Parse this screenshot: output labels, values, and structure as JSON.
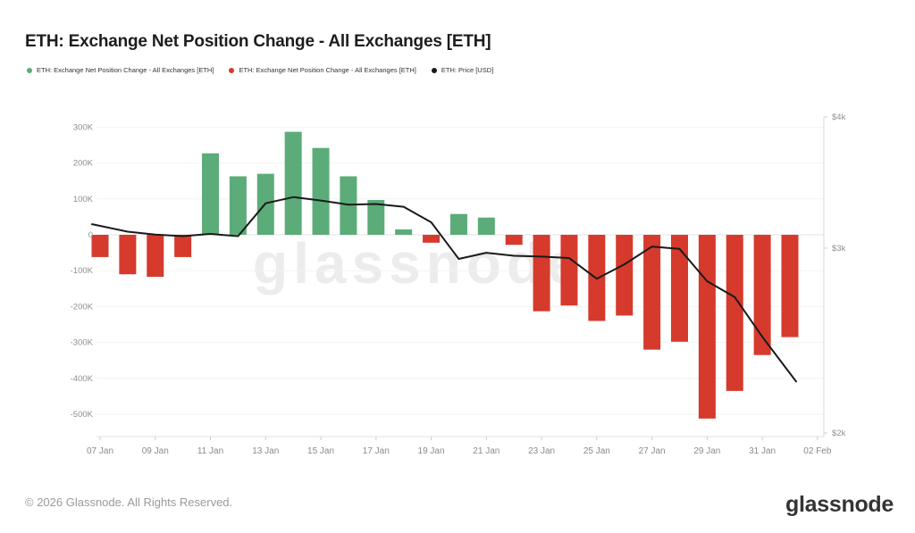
{
  "title": "ETH: Exchange Net Position Change - All Exchanges [ETH]",
  "legend": [
    {
      "label": "ETH: Exchange Net Position Change - All Exchanges [ETH]",
      "color": "#5bac78"
    },
    {
      "label": "ETH: Exchange Net Position Change - All Exchanges [ETH]",
      "color": "#d53a2c"
    },
    {
      "label": "ETH: Price [USD]",
      "color": "#1a1a1a"
    }
  ],
  "watermark": "glassnode",
  "footer": {
    "copyright": "© 2026 Glassnode. All Rights Reserved.",
    "logo_text": "glassnode"
  },
  "chart_data": {
    "type": "bar",
    "title": "ETH: Exchange Net Position Change - All Exchanges [ETH]",
    "categories": [
      "07 Jan",
      "08 Jan",
      "09 Jan",
      "10 Jan",
      "11 Jan",
      "12 Jan",
      "13 Jan",
      "14 Jan",
      "15 Jan",
      "16 Jan",
      "17 Jan",
      "18 Jan",
      "19 Jan",
      "20 Jan",
      "21 Jan",
      "22 Jan",
      "23 Jan",
      "24 Jan",
      "25 Jan",
      "26 Jan",
      "27 Jan",
      "28 Jan",
      "29 Jan",
      "30 Jan",
      "31 Jan",
      "01 Feb"
    ],
    "series": [
      {
        "name": "ETH: Exchange Net Position Change - All Exchanges [ETH]",
        "type": "bar",
        "axis": "left",
        "unit": "thousand ETH",
        "values_k": [
          -62,
          -110,
          -117,
          -62,
          227,
          163,
          170,
          287,
          242,
          163,
          97,
          15,
          -22,
          58,
          48,
          -28,
          -213,
          -197,
          -240,
          -225,
          -320,
          -298,
          -512,
          -435,
          -335,
          -285
        ],
        "positive_color": "#5bac78",
        "negative_color": "#d53a2c"
      },
      {
        "name": "ETH: Price [USD]",
        "type": "line",
        "axis": "right",
        "unit": "USD",
        "values": [
          3150,
          3110,
          3090,
          3080,
          3095,
          3080,
          3310,
          3355,
          3330,
          3300,
          3305,
          3285,
          3175,
          2930,
          2970,
          2950,
          2945,
          2935,
          2805,
          2895,
          3010,
          2995,
          2790,
          2695,
          2470,
          2280
        ],
        "color": "#1a1a1a"
      }
    ],
    "left_axis": {
      "tick_labels": [
        "300K",
        "200K",
        "100K",
        "0",
        "-100K",
        "-200K",
        "-300K",
        "-400K",
        "-500K"
      ],
      "tick_values_k": [
        300,
        200,
        100,
        0,
        -100,
        -200,
        -300,
        -400,
        -500
      ],
      "grid": true
    },
    "right_axis": {
      "scale": "log",
      "tick_labels": [
        "$4k",
        "$3k",
        "$2k"
      ],
      "tick_values": [
        4000,
        3000,
        2000
      ]
    },
    "x_axis": {
      "tick_labels": [
        "07 Jan",
        "09 Jan",
        "11 Jan",
        "13 Jan",
        "15 Jan",
        "17 Jan",
        "19 Jan",
        "21 Jan",
        "23 Jan",
        "25 Jan",
        "27 Jan",
        "29 Jan",
        "31 Jan",
        "02 Feb"
      ],
      "tick_day_indices": [
        0,
        2,
        4,
        6,
        8,
        10,
        12,
        14,
        16,
        18,
        20,
        22,
        24,
        26
      ]
    },
    "legend_position": "top"
  }
}
